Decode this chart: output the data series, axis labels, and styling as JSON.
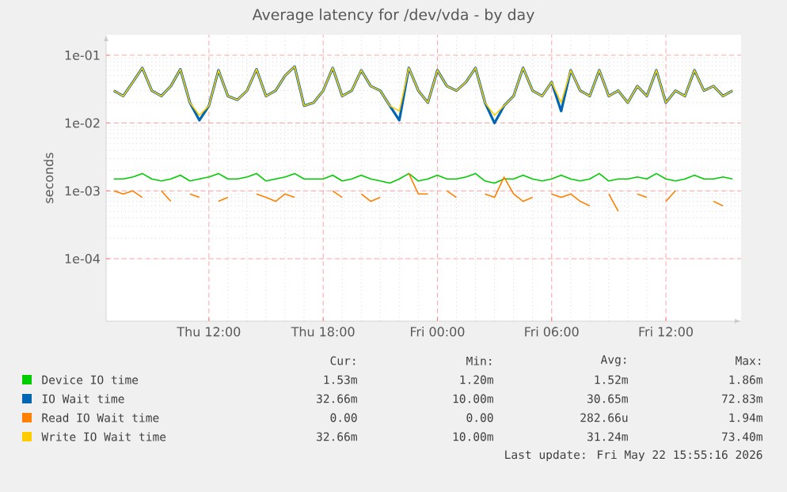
{
  "chart_data": {
    "type": "line",
    "title": "Average latency for /dev/vda - by day",
    "ylabel": "seconds",
    "log": true,
    "grid": true,
    "legend": "bottom",
    "x": [
      "2026-05-21T07:00",
      "2026-05-21T07:30",
      "2026-05-21T08:00",
      "2026-05-21T08:30",
      "2026-05-21T09:00",
      "2026-05-21T09:30",
      "2026-05-21T10:00",
      "2026-05-21T10:30",
      "2026-05-21T11:00",
      "2026-05-21T11:30",
      "2026-05-21T12:00",
      "2026-05-21T12:30",
      "2026-05-21T13:00",
      "2026-05-21T13:30",
      "2026-05-21T14:00",
      "2026-05-21T14:30",
      "2026-05-21T15:00",
      "2026-05-21T15:30",
      "2026-05-21T16:00",
      "2026-05-21T16:30",
      "2026-05-21T17:00",
      "2026-05-21T17:30",
      "2026-05-21T18:00",
      "2026-05-21T18:30",
      "2026-05-21T19:00",
      "2026-05-21T19:30",
      "2026-05-21T20:00",
      "2026-05-21T20:30",
      "2026-05-21T21:00",
      "2026-05-21T21:30",
      "2026-05-21T22:00",
      "2026-05-21T22:30",
      "2026-05-21T23:00",
      "2026-05-21T23:30",
      "2026-05-22T00:00",
      "2026-05-22T00:30",
      "2026-05-22T01:00",
      "2026-05-22T01:30",
      "2026-05-22T02:00",
      "2026-05-22T02:30",
      "2026-05-22T03:00",
      "2026-05-22T03:30",
      "2026-05-22T04:00",
      "2026-05-22T04:30",
      "2026-05-22T05:00",
      "2026-05-22T05:30",
      "2026-05-22T06:00",
      "2026-05-22T06:30",
      "2026-05-22T07:00",
      "2026-05-22T07:30",
      "2026-05-22T08:00",
      "2026-05-22T08:30",
      "2026-05-22T09:00",
      "2026-05-22T09:30",
      "2026-05-22T10:00",
      "2026-05-22T10:30",
      "2026-05-22T11:00",
      "2026-05-22T11:30",
      "2026-05-22T12:00",
      "2026-05-22T12:30",
      "2026-05-22T13:00",
      "2026-05-22T13:30",
      "2026-05-22T14:00",
      "2026-05-22T14:30",
      "2026-05-22T15:00",
      "2026-05-22T15:30"
    ],
    "xlim": [
      "2026-05-21T06:36",
      "2026-05-22T15:57"
    ],
    "xticks": [
      {
        "value": "2026-05-21T12:00",
        "label": "Thu 12:00"
      },
      {
        "value": "2026-05-21T18:00",
        "label": "Thu 18:00"
      },
      {
        "value": "2026-05-22T00:00",
        "label": "Fri 00:00"
      },
      {
        "value": "2026-05-22T06:00",
        "label": "Fri 06:00"
      },
      {
        "value": "2026-05-22T12:00",
        "label": "Fri 12:00"
      }
    ],
    "ylim": [
      1.2e-05,
      0.2
    ],
    "yticks": [
      {
        "value": 0.0001,
        "label": "1e-04"
      },
      {
        "value": 0.001,
        "label": "1e-03"
      },
      {
        "value": 0.01,
        "label": "1e-02"
      },
      {
        "value": 0.1,
        "label": "1e-01"
      }
    ],
    "series": [
      {
        "name": "Device IO time",
        "color": "#00cc00",
        "values": [
          0.0015,
          0.0015,
          0.0016,
          0.0018,
          0.0015,
          0.0014,
          0.0015,
          0.0017,
          0.0014,
          0.0015,
          0.0016,
          0.0018,
          0.0015,
          0.0015,
          0.0016,
          0.0018,
          0.0014,
          0.0015,
          0.0016,
          0.0018,
          0.0015,
          0.0015,
          0.0015,
          0.0017,
          0.0014,
          0.0015,
          0.0017,
          0.0015,
          0.0014,
          0.0013,
          0.0015,
          0.0018,
          0.0014,
          0.0015,
          0.0017,
          0.0015,
          0.0015,
          0.0016,
          0.0018,
          0.0014,
          0.0013,
          0.0015,
          0.0015,
          0.0017,
          0.0015,
          0.0014,
          0.0015,
          0.0017,
          0.0015,
          0.0014,
          0.0015,
          0.0018,
          0.0014,
          0.0015,
          0.0015,
          0.0016,
          0.0015,
          0.0018,
          0.0015,
          0.0014,
          0.0015,
          0.0017,
          0.0015,
          0.0015,
          0.0016,
          0.0015
        ]
      },
      {
        "name": "IO Wait time",
        "color": "#0066b3",
        "values": [
          0.03,
          0.025,
          0.04,
          0.065,
          0.03,
          0.025,
          0.035,
          0.062,
          0.02,
          0.011,
          0.018,
          0.06,
          0.025,
          0.022,
          0.03,
          0.062,
          0.025,
          0.03,
          0.05,
          0.068,
          0.018,
          0.02,
          0.03,
          0.065,
          0.025,
          0.03,
          0.06,
          0.035,
          0.03,
          0.018,
          0.011,
          0.065,
          0.03,
          0.02,
          0.06,
          0.035,
          0.03,
          0.04,
          0.065,
          0.02,
          0.01,
          0.018,
          0.025,
          0.065,
          0.03,
          0.025,
          0.04,
          0.015,
          0.06,
          0.03,
          0.025,
          0.06,
          0.025,
          0.03,
          0.02,
          0.035,
          0.025,
          0.06,
          0.02,
          0.03,
          0.025,
          0.06,
          0.03,
          0.035,
          0.025,
          0.03
        ]
      },
      {
        "name": "Read IO Wait time",
        "color": "#ff8000",
        "values": [
          0.001,
          0.0009,
          0.001,
          0.0008,
          null,
          0.001,
          0.0007,
          null,
          0.0009,
          0.0008,
          null,
          0.0007,
          0.0008,
          null,
          null,
          0.0009,
          0.0008,
          0.0007,
          0.0009,
          0.0008,
          null,
          null,
          null,
          0.001,
          0.0008,
          null,
          0.0009,
          0.0007,
          0.0008,
          null,
          null,
          0.0018,
          0.0009,
          0.0009,
          null,
          0.001,
          0.0008,
          null,
          null,
          0.0009,
          0.0008,
          0.0016,
          0.0009,
          0.0007,
          0.0008,
          null,
          0.0009,
          0.0008,
          0.0009,
          0.0007,
          0.0006,
          null,
          0.0009,
          0.0005,
          null,
          0.0009,
          0.0008,
          null,
          0.0007,
          0.001,
          null,
          null,
          null,
          0.0007,
          0.0006,
          null
        ]
      },
      {
        "name": "Write IO Wait time",
        "color": "#ffcc00",
        "values": [
          0.03,
          0.025,
          0.04,
          0.065,
          0.03,
          0.025,
          0.035,
          0.062,
          0.02,
          0.013,
          0.018,
          0.06,
          0.025,
          0.022,
          0.03,
          0.062,
          0.025,
          0.03,
          0.05,
          0.068,
          0.018,
          0.02,
          0.03,
          0.065,
          0.025,
          0.03,
          0.06,
          0.035,
          0.03,
          0.018,
          0.015,
          0.065,
          0.03,
          0.02,
          0.06,
          0.035,
          0.03,
          0.04,
          0.065,
          0.02,
          0.013,
          0.018,
          0.025,
          0.065,
          0.03,
          0.025,
          0.04,
          0.02,
          0.06,
          0.03,
          0.025,
          0.06,
          0.025,
          0.03,
          0.02,
          0.035,
          0.025,
          0.06,
          0.02,
          0.03,
          0.025,
          0.06,
          0.03,
          0.035,
          0.025,
          0.03
        ]
      }
    ],
    "annotations": [
      "Cur:",
      "Min:",
      "Avg:",
      "Max:",
      "1.53m",
      "1.20m",
      "1.52m",
      "1.86m",
      "32.66m",
      "10.00m",
      "30.65m",
      "72.83m",
      "0.00",
      "0.00",
      "282.66u",
      "1.94m",
      "32.66m",
      "10.00m",
      "31.24m",
      "73.40m",
      "Last update: Fri May 22 15:55:16 2026"
    ]
  }
}
